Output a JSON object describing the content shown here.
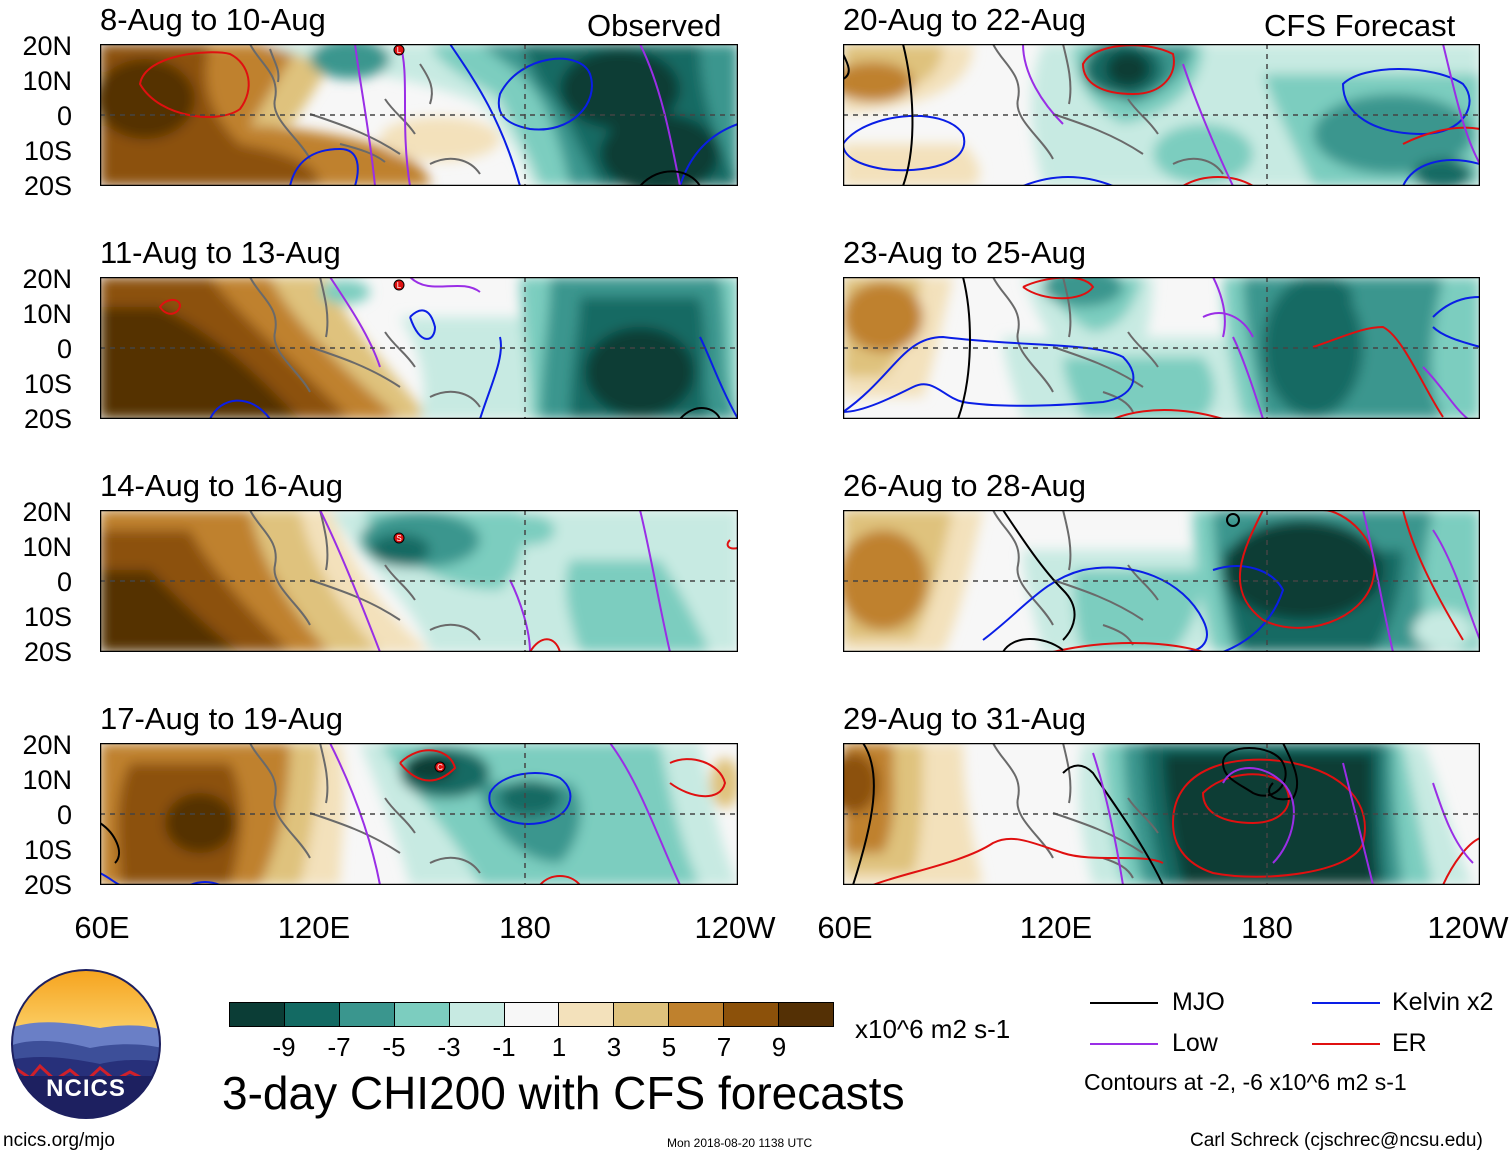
{
  "figure": {
    "title": "3-day CHI200 with CFS forecasts",
    "observed_label": "Observed",
    "forecast_label": "CFS Forecast",
    "lat_labels": [
      "20N",
      "10N",
      "0",
      "10S",
      "20S"
    ],
    "lon_labels": [
      "60E",
      "120E",
      "180",
      "120W"
    ],
    "left_column_periods": [
      "8-Aug to 10-Aug",
      "11-Aug to 13-Aug",
      "14-Aug to 16-Aug",
      "17-Aug to 19-Aug"
    ],
    "right_column_periods": [
      "20-Aug to 22-Aug",
      "23-Aug to 25-Aug",
      "26-Aug to 28-Aug",
      "29-Aug to 31-Aug"
    ]
  },
  "colorbar": {
    "colors": [
      "#0b3d36",
      "#136a63",
      "#3a968e",
      "#7ccdbf",
      "#c7eae2",
      "#f7f7f7",
      "#f3e1bb",
      "#dfc27d",
      "#bf812d",
      "#8c510a",
      "#543005"
    ],
    "ticks": [
      "-9",
      "-7",
      "-5",
      "-3",
      "-1",
      "1",
      "3",
      "5",
      "7",
      "9"
    ],
    "units": "x10^6 m2 s-1"
  },
  "legend": {
    "items": [
      {
        "label": "MJO",
        "color": "#000000"
      },
      {
        "label": "Kelvin x2",
        "color": "#0a1ee6"
      },
      {
        "label": "Low",
        "color": "#9a2ee6"
      },
      {
        "label": "ER",
        "color": "#e01010"
      }
    ],
    "note": "Contours at -2, -6 x10^6 m2 s-1"
  },
  "storm_markers": [
    "L",
    "L",
    "S",
    "C"
  ],
  "footer": {
    "logo_text": "NCICS",
    "url": "ncics.org/mjo",
    "timestamp": "Mon 2018-08-20 1138 UTC",
    "credit": "Carl Schreck (cjschrec@ncsu.edu)"
  }
}
